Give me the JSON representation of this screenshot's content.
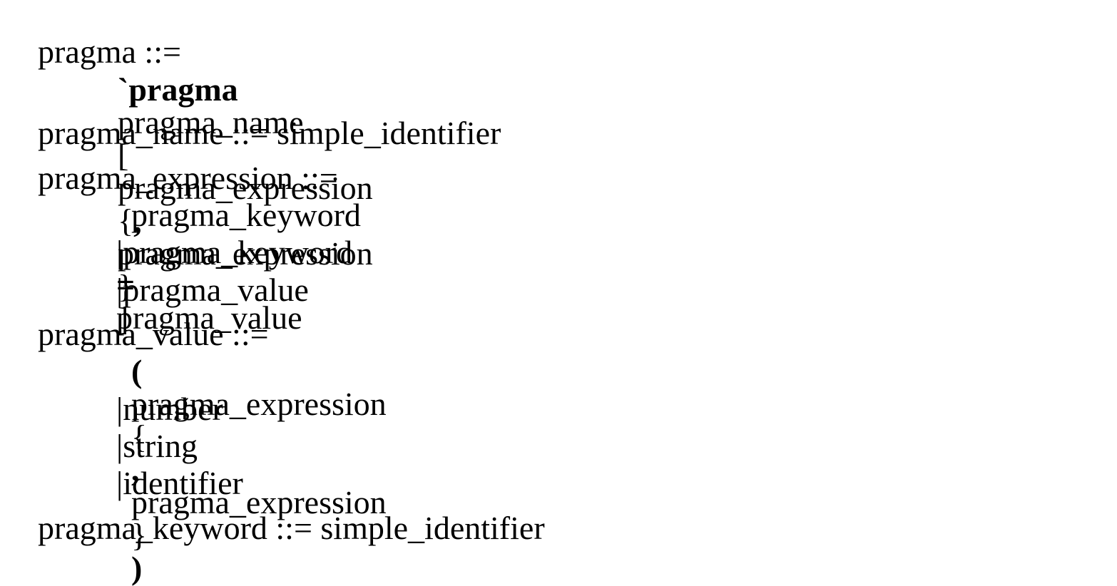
{
  "grammar": {
    "pragma": {
      "lhs": "pragma ::=",
      "rhs": {
        "backtick_kw": "`pragma",
        "name": "pragma_name",
        "open_bracket": "[",
        "expr1": "pragma_expression",
        "open_brace": "{",
        "comma": ",",
        "expr2": "pragma_expression",
        "close_brace": "}",
        "close_bracket": "]"
      }
    },
    "pragma_name": {
      "line": "pragma_name ::= simple_identifier"
    },
    "pragma_expression": {
      "lhs": "pragma_expression ::=",
      "alt1": "pragma_keyword",
      "alt2": {
        "bar": "|",
        "keyword": "pragma_keyword",
        "equals": "=",
        "value": "pragma_value"
      },
      "alt3": {
        "bar": "|",
        "value": "pragma_value"
      }
    },
    "pragma_value": {
      "lhs": "pragma_value ::=",
      "alt1": {
        "open_paren": "(",
        "expr1": "pragma_expression",
        "open_brace": "{",
        "comma": ",",
        "expr2": "pragma_expression",
        "close_brace": "}",
        "close_paren": ")"
      },
      "alt2": {
        "bar": "|",
        "text": "number"
      },
      "alt3": {
        "bar": "|",
        "text": "string"
      },
      "alt4": {
        "bar": "|",
        "text": "identifier"
      }
    },
    "pragma_keyword": {
      "line": "pragma_keyword ::= simple_identifier"
    }
  }
}
